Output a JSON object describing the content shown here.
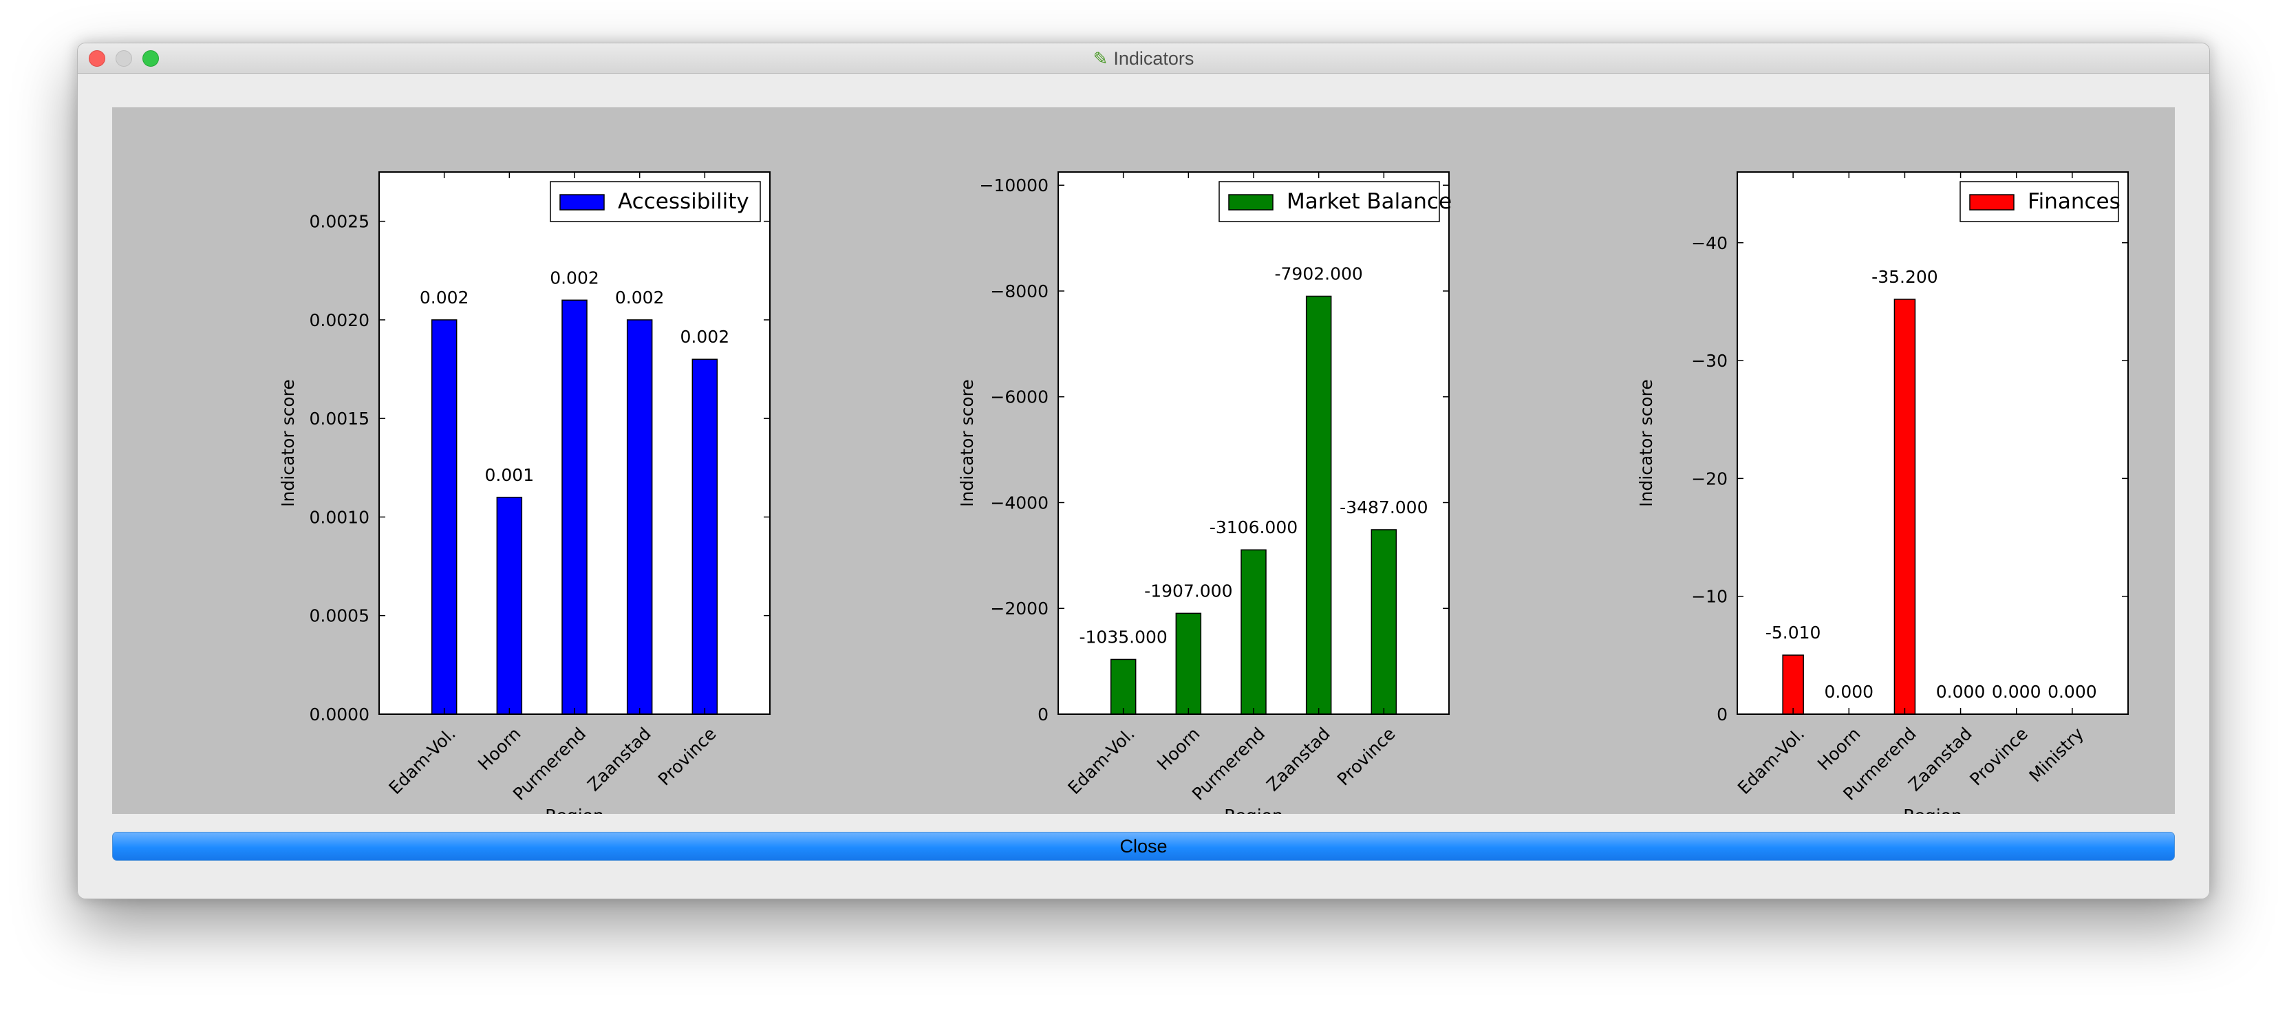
{
  "window": {
    "title": "Indicators",
    "app_icon": "checkmark-pencil-icon",
    "close_label": "Close"
  },
  "chart_data": [
    {
      "type": "bar",
      "categories": [
        "Edam-Vol.",
        "Hoorn",
        "Purmerend",
        "Zaanstad",
        "Province"
      ],
      "series": [
        {
          "name": "Accessibility",
          "values": [
            0.002,
            0.0011,
            0.0021,
            0.002,
            0.0018
          ],
          "color": "#0000ff"
        }
      ],
      "labels": [
        "0.002",
        "0.001",
        "0.002",
        "0.002",
        "0.002"
      ],
      "xlabel": "Region",
      "ylabel": "Indicator score",
      "ylim": [
        0,
        0.00275
      ],
      "yticks": [
        0,
        0.0005,
        0.001,
        0.0015,
        0.002,
        0.0025
      ],
      "ytick_labels": [
        "0.0000",
        "0.0005",
        "0.0010",
        "0.0015",
        "0.0020",
        "0.0025"
      ],
      "inverted": false,
      "legend": "upper right",
      "grid": false
    },
    {
      "type": "bar",
      "categories": [
        "Edam-Vol.",
        "Hoorn",
        "Purmerend",
        "Zaanstad",
        "Province"
      ],
      "series": [
        {
          "name": "Market Balance",
          "values": [
            -1035.0,
            -1907.0,
            -3106.0,
            -7902.0,
            -3487.0
          ],
          "color": "#008000"
        }
      ],
      "labels": [
        "-1035.000",
        "-1907.000",
        "-3106.000",
        "-7902.000",
        "-3487.000"
      ],
      "xlabel": "Region",
      "ylabel": "Indicator score",
      "ylim": [
        0,
        -10250
      ],
      "yticks": [
        0,
        -2000,
        -4000,
        -6000,
        -8000,
        -10000
      ],
      "ytick_labels": [
        "0",
        "−2000",
        "−4000",
        "−6000",
        "−8000",
        "−10000"
      ],
      "inverted": true,
      "legend": "upper right",
      "grid": false
    },
    {
      "type": "bar",
      "categories": [
        "Edam-Vol.",
        "Hoorn",
        "Purmerend",
        "Zaanstad",
        "Province",
        "Ministry"
      ],
      "series": [
        {
          "name": "Finances",
          "values": [
            -5.01,
            0.0,
            -35.2,
            0.0,
            0.0,
            0.0
          ],
          "color": "#ff0000"
        }
      ],
      "labels": [
        "-5.010",
        "0.000",
        "-35.200",
        "0.000",
        "0.000",
        "0.000"
      ],
      "xlabel": "Region",
      "ylabel": "Indicator score",
      "ylim": [
        0,
        -46
      ],
      "yticks": [
        0,
        -10,
        -20,
        -30,
        -40
      ],
      "ytick_labels": [
        "0",
        "−10",
        "−20",
        "−30",
        "−40"
      ],
      "inverted": true,
      "legend": "upper right",
      "grid": false
    }
  ]
}
